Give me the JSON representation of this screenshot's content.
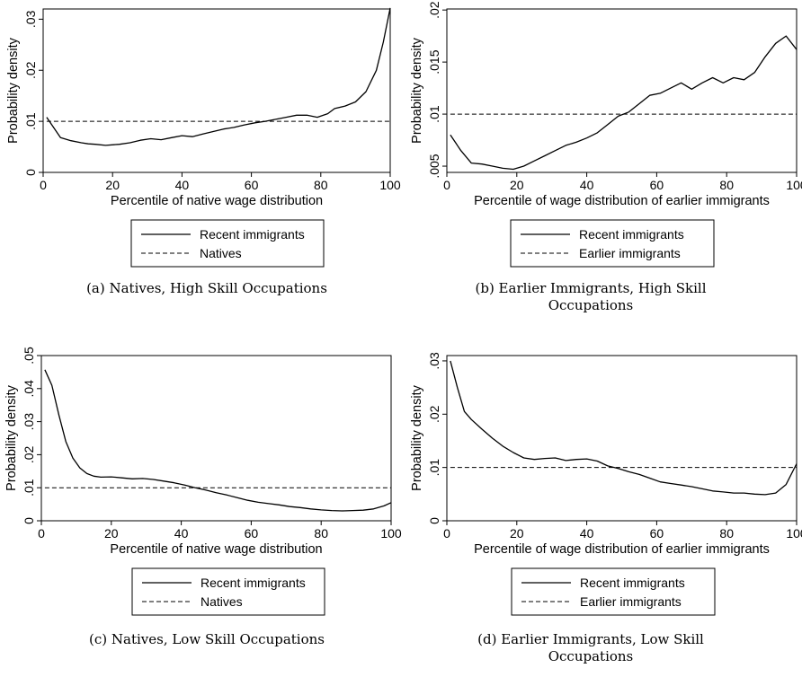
{
  "chart_data": [
    {
      "type": "line",
      "panel": "a",
      "caption_lines": [
        "(a) Natives, High Skill Occupations"
      ],
      "title": "",
      "xlabel": "Percentile of native wage distribution",
      "ylabel": "Probability density",
      "xlim": [
        0,
        100
      ],
      "ylim": [
        0,
        0.032
      ],
      "x_ticks": [
        0,
        20,
        40,
        60,
        80,
        100
      ],
      "x_tick_labels": [
        "0",
        "20",
        "40",
        "60",
        "80",
        "100"
      ],
      "y_ticks": [
        0,
        0.01,
        0.02,
        0.03
      ],
      "y_tick_labels": [
        "0",
        ".01",
        ".02",
        ".03"
      ],
      "grid": false,
      "legend_position": "bottom",
      "series": [
        {
          "name": "Recent immigrants",
          "style": "solid",
          "x": [
            1,
            5,
            8,
            11,
            13,
            15,
            18,
            22,
            25,
            28,
            31,
            34,
            37,
            40,
            43,
            46,
            49,
            52,
            55,
            58,
            61,
            64,
            67,
            70,
            73,
            76,
            79,
            82,
            84,
            87,
            90,
            93,
            96,
            98,
            100
          ],
          "y": [
            0.0108,
            0.0068,
            0.0062,
            0.0058,
            0.0056,
            0.0055,
            0.0053,
            0.0055,
            0.0058,
            0.0063,
            0.0066,
            0.0064,
            0.0068,
            0.0072,
            0.007,
            0.0075,
            0.008,
            0.0085,
            0.0088,
            0.0093,
            0.0097,
            0.01,
            0.0104,
            0.0108,
            0.0112,
            0.0112,
            0.0108,
            0.0115,
            0.0125,
            0.013,
            0.0138,
            0.0158,
            0.02,
            0.0255,
            0.0322
          ]
        },
        {
          "name": "Natives",
          "style": "dashed",
          "x": [
            1,
            100
          ],
          "y": [
            0.01,
            0.01
          ]
        }
      ]
    },
    {
      "type": "line",
      "panel": "b",
      "caption_lines": [
        "(b) Earlier Immigrants, High Skill",
        "Occupations"
      ],
      "title": "",
      "xlabel": "Percentile of wage distribution of earlier immigrants",
      "ylabel": "Probability density",
      "xlim": [
        0,
        100
      ],
      "ylim": [
        0.0044,
        0.0201
      ],
      "x_ticks": [
        0,
        20,
        40,
        60,
        80,
        100
      ],
      "x_tick_labels": [
        "0",
        "20",
        "40",
        "60",
        "80",
        "100"
      ],
      "y_ticks": [
        0.005,
        0.01,
        0.015,
        0.02
      ],
      "y_tick_labels": [
        ".005",
        ".01",
        ".015",
        ".02"
      ],
      "grid": false,
      "legend_position": "bottom",
      "series": [
        {
          "name": "Recent immigrants",
          "style": "solid",
          "x": [
            1,
            4,
            7,
            10,
            13,
            16,
            19,
            22,
            25,
            28,
            31,
            34,
            37,
            40,
            43,
            46,
            49,
            52,
            55,
            58,
            61,
            64,
            67,
            70,
            73,
            76,
            79,
            82,
            85,
            88,
            91,
            94,
            97,
            100
          ],
          "y": [
            0.008,
            0.0065,
            0.0053,
            0.0052,
            0.005,
            0.0048,
            0.0047,
            0.005,
            0.0055,
            0.006,
            0.0065,
            0.007,
            0.0073,
            0.0077,
            0.0082,
            0.009,
            0.0098,
            0.0102,
            0.011,
            0.0118,
            0.012,
            0.0125,
            0.013,
            0.0124,
            0.013,
            0.0135,
            0.013,
            0.0135,
            0.0133,
            0.014,
            0.0155,
            0.0168,
            0.0175,
            0.0162
          ]
        },
        {
          "name": "Earlier immigrants",
          "style": "dashed",
          "x": [
            1,
            100
          ],
          "y": [
            0.01,
            0.01
          ]
        }
      ]
    },
    {
      "type": "line",
      "panel": "c",
      "caption_lines": [
        "(c) Natives, Low Skill Occupations"
      ],
      "title": "",
      "xlabel": "Percentile of native wage distribution",
      "ylabel": "Probability density",
      "xlim": [
        0,
        100
      ],
      "ylim": [
        0,
        0.05
      ],
      "x_ticks": [
        0,
        20,
        40,
        60,
        80,
        100
      ],
      "x_tick_labels": [
        "0",
        "20",
        "40",
        "60",
        "80",
        "100"
      ],
      "y_ticks": [
        0,
        0.01,
        0.02,
        0.03,
        0.04,
        0.05
      ],
      "y_tick_labels": [
        "0",
        ".01",
        ".02",
        ".03",
        ".04",
        ".05"
      ],
      "grid": false,
      "legend_position": "bottom",
      "series": [
        {
          "name": "Recent immigrants",
          "style": "solid",
          "x": [
            1,
            3,
            5,
            7,
            9,
            11,
            13,
            15,
            17,
            20,
            23,
            26,
            29,
            32,
            35,
            38,
            41,
            44,
            47,
            50,
            53,
            56,
            59,
            62,
            65,
            68,
            71,
            74,
            77,
            80,
            83,
            86,
            89,
            92,
            95,
            98,
            100
          ],
          "y": [
            0.0457,
            0.041,
            0.032,
            0.024,
            0.019,
            0.016,
            0.0143,
            0.0135,
            0.0132,
            0.0133,
            0.013,
            0.0127,
            0.0128,
            0.0125,
            0.012,
            0.0115,
            0.0108,
            0.01,
            0.0093,
            0.0085,
            0.0078,
            0.007,
            0.0062,
            0.0056,
            0.0052,
            0.0048,
            0.0043,
            0.004,
            0.0036,
            0.0033,
            0.0031,
            0.003,
            0.0031,
            0.0032,
            0.0036,
            0.0045,
            0.0055
          ]
        },
        {
          "name": "Natives",
          "style": "dashed",
          "x": [
            1,
            100
          ],
          "y": [
            0.01,
            0.01
          ]
        }
      ]
    },
    {
      "type": "line",
      "panel": "d",
      "caption_lines": [
        "(d) Earlier Immigrants, Low Skill",
        "Occupations"
      ],
      "title": "",
      "xlabel": "Percentile of wage distribution of earlier immigrants",
      "ylabel": "Probability density",
      "xlim": [
        0,
        100
      ],
      "ylim": [
        0,
        0.031
      ],
      "x_ticks": [
        0,
        20,
        40,
        60,
        80,
        100
      ],
      "x_tick_labels": [
        "0",
        "20",
        "40",
        "60",
        "80",
        "100"
      ],
      "y_ticks": [
        0,
        0.01,
        0.02,
        0.03
      ],
      "y_tick_labels": [
        "0",
        ".01",
        ".02",
        ".03"
      ],
      "grid": false,
      "legend_position": "bottom",
      "series": [
        {
          "name": "Recent immigrants",
          "style": "solid",
          "x": [
            1,
            3,
            5,
            7,
            10,
            13,
            16,
            19,
            22,
            25,
            28,
            31,
            34,
            37,
            40,
            43,
            46,
            49,
            52,
            55,
            58,
            61,
            64,
            67,
            70,
            73,
            76,
            79,
            82,
            85,
            88,
            91,
            94,
            97,
            100
          ],
          "y": [
            0.03,
            0.025,
            0.0205,
            0.019,
            0.0172,
            0.0155,
            0.014,
            0.0128,
            0.0118,
            0.0115,
            0.0117,
            0.0118,
            0.0113,
            0.0115,
            0.0116,
            0.0112,
            0.0103,
            0.0098,
            0.0092,
            0.0087,
            0.008,
            0.0073,
            0.007,
            0.0067,
            0.0064,
            0.006,
            0.0056,
            0.0054,
            0.0052,
            0.0052,
            0.005,
            0.0049,
            0.0052,
            0.0068,
            0.0107
          ]
        },
        {
          "name": "Earlier immigrants",
          "style": "dashed",
          "x": [
            1,
            100
          ],
          "y": [
            0.01,
            0.01
          ]
        }
      ]
    }
  ]
}
